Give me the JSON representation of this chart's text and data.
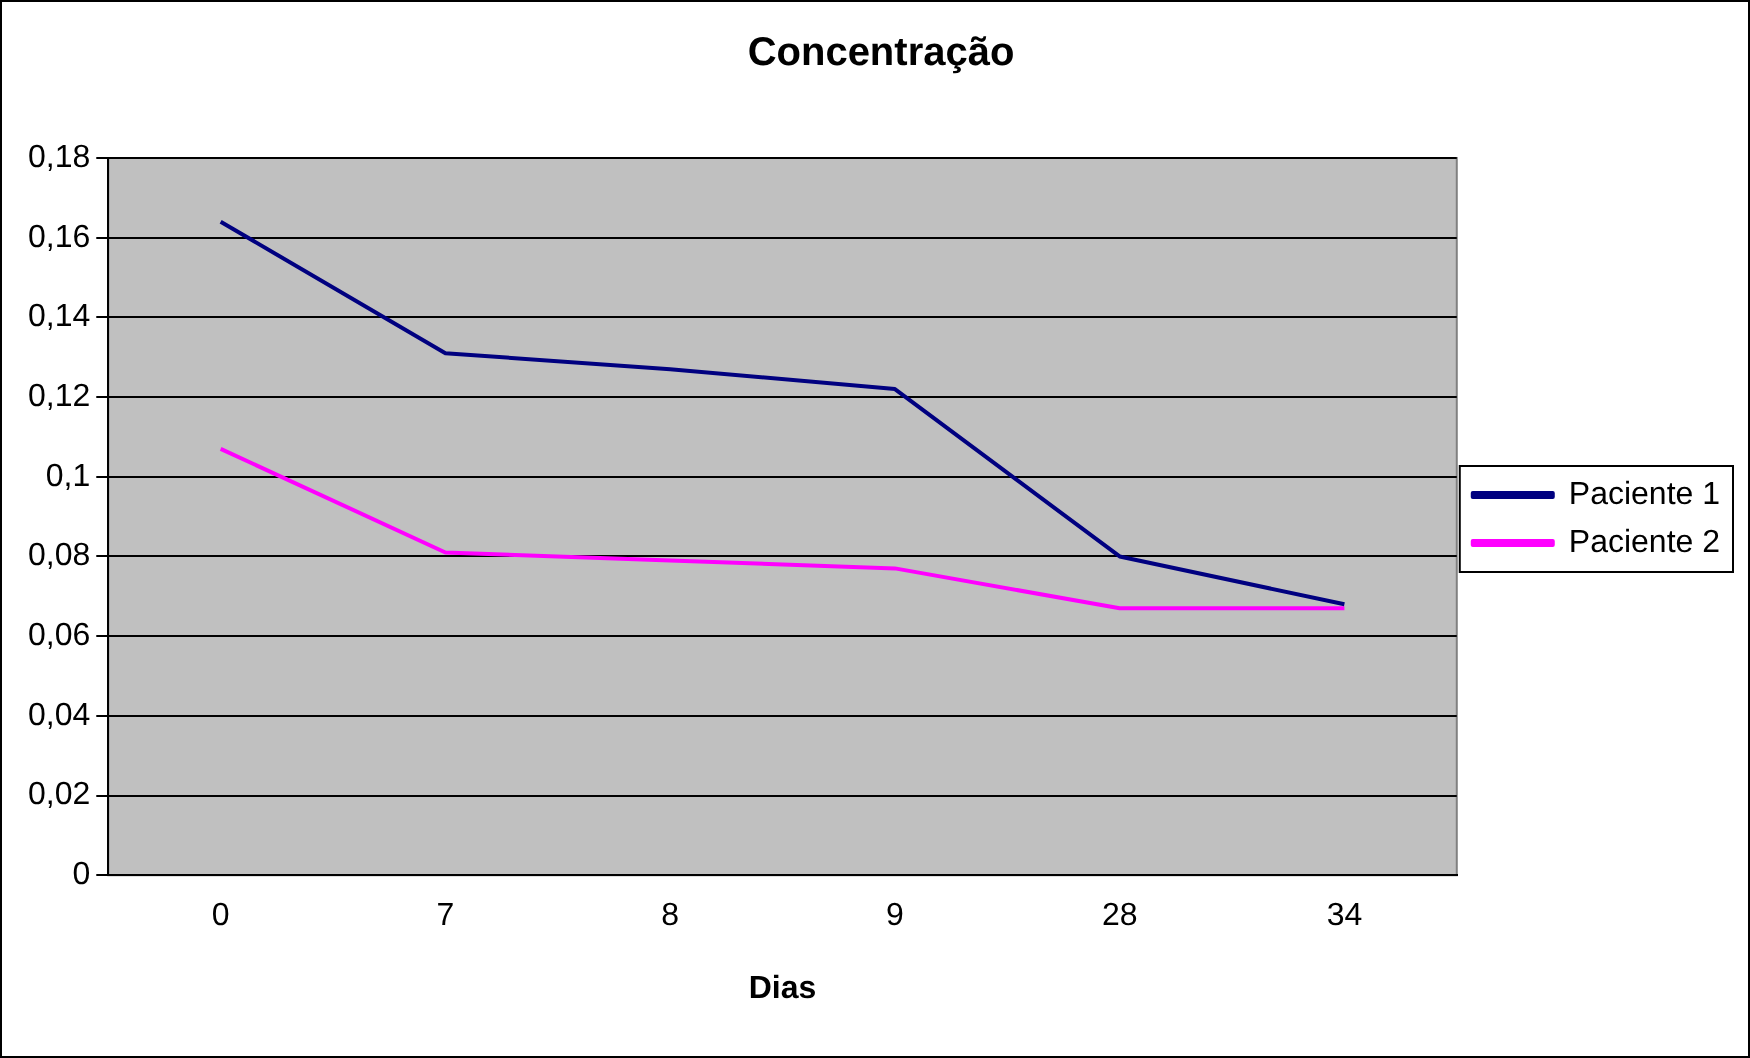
{
  "chart_data": {
    "type": "line",
    "title": "Concentração",
    "xlabel": "Dias",
    "categories": [
      "0",
      "7",
      "8",
      "9",
      "28",
      "34"
    ],
    "series": [
      {
        "name": "Paciente 1",
        "color": "#000080",
        "values": [
          0.164,
          0.131,
          0.127,
          0.122,
          0.08,
          0.068
        ]
      },
      {
        "name": "Paciente 2",
        "color": "#ff00ff",
        "values": [
          0.107,
          0.081,
          0.079,
          0.077,
          0.067,
          0.067
        ]
      }
    ],
    "ylim": [
      0,
      0.18
    ],
    "yticks": [
      0,
      {
        "value": 0.02,
        "label": "0,02"
      },
      {
        "value": 0.04,
        "label": "0,04"
      },
      {
        "value": 0.06,
        "label": "0,06"
      },
      {
        "value": 0.08,
        "label": "0,08"
      },
      {
        "value": 0.1,
        "label": "0,1"
      },
      {
        "value": 0.12,
        "label": "0,12"
      },
      {
        "value": 0.14,
        "label": "0,14"
      },
      {
        "value": 0.16,
        "label": "0,16"
      },
      {
        "value": 0.18,
        "label": "0,18"
      }
    ],
    "grid": "y",
    "legend": "right",
    "marker": "none",
    "line_style": "solid"
  }
}
